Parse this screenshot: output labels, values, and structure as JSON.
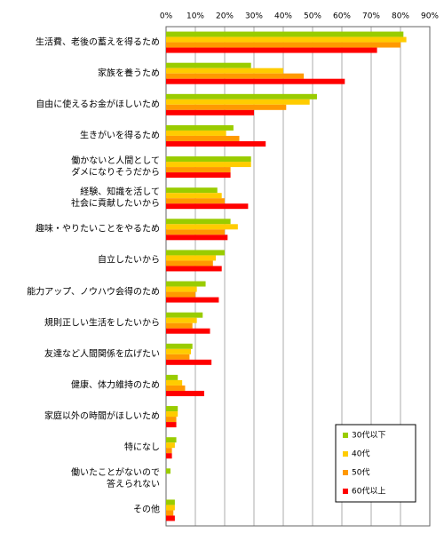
{
  "chart_data": {
    "type": "hbar",
    "categories": [
      "生活費、老後の蓄えを得るため",
      "家族を養うため",
      "自由に使えるお金がほしいため",
      "生きがいを得るため",
      "働かないと人間として\nダメになりそうだから",
      "経験、知識を活して\n社会に貢献したいから",
      "趣味・やりたいことをやるため",
      "自立したいから",
      "能力アップ、ノウハウ会得のため",
      "規則正しい生活をしたいから",
      "友達など人間関係を広げたい",
      "健康、体力維持のため",
      "家庭以外の時間がほしいため",
      "特になし",
      "働いたことがないので\n答えられない",
      "その他"
    ],
    "series": [
      {
        "name": "30代以下",
        "color": "#99cc00",
        "values": [
          81,
          29,
          51.5,
          23,
          29,
          17.5,
          22,
          20,
          13.5,
          12.5,
          9,
          4,
          4,
          3.5,
          1.5,
          3
        ]
      },
      {
        "name": "40代",
        "color": "#ffcc00",
        "values": [
          82,
          40,
          49,
          20.5,
          29,
          19,
          24.5,
          17,
          10.5,
          10.5,
          8.5,
          5.5,
          4,
          3,
          0,
          3
        ]
      },
      {
        "name": "50代",
        "color": "#ff9900",
        "values": [
          80,
          47,
          41,
          25,
          22,
          20,
          20,
          16,
          10,
          9,
          8,
          6.5,
          3.5,
          2,
          0,
          2.5
        ]
      },
      {
        "name": "60代以上",
        "color": "#ff0000",
        "values": [
          72,
          61,
          30,
          34,
          22,
          28,
          21,
          19,
          18,
          15,
          15.5,
          13,
          3.5,
          2,
          0,
          3
        ]
      }
    ],
    "xlim": [
      0,
      90
    ],
    "xticks": [
      {
        "value": 0,
        "label": "0%"
      },
      {
        "value": 10,
        "label": "10%"
      },
      {
        "value": 20,
        "label": "20%"
      },
      {
        "value": 30,
        "label": "30%"
      },
      {
        "value": 40,
        "label": "40%"
      },
      {
        "value": 50,
        "label": "50%"
      },
      {
        "value": 60,
        "label": "60%"
      },
      {
        "value": 70,
        "label": "70%"
      },
      {
        "value": 80,
        "label": "80%"
      },
      {
        "value": 90,
        "label": "90%"
      }
    ],
    "grid": true,
    "legend": "lower right"
  }
}
